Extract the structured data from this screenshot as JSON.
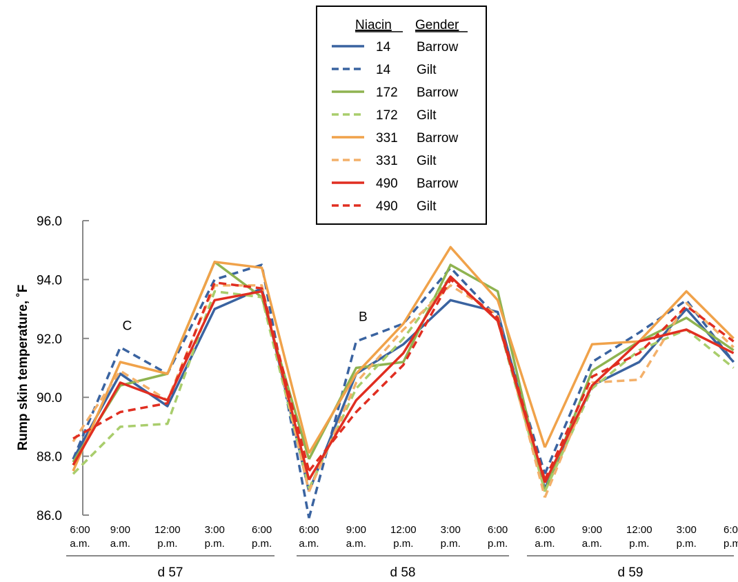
{
  "chart_data": {
    "type": "line",
    "ylabel": "Rump skin temperature, ˚F",
    "ylim": [
      86.0,
      96.0
    ],
    "yticks": [
      "96.0",
      "94.0",
      "92.0",
      "90.0",
      "88.0",
      "86.0"
    ],
    "x_ticks": [
      {
        "time": "6:00",
        "period": "a.m."
      },
      {
        "time": "9:00",
        "period": "a.m."
      },
      {
        "time": "12:00",
        "period": "p.m."
      },
      {
        "time": "3:00",
        "period": "p.m."
      },
      {
        "time": "6:00",
        "period": "p.m."
      },
      {
        "time": "6:00",
        "period": "a.m."
      },
      {
        "time": "9:00",
        "period": "a.m."
      },
      {
        "time": "12:00",
        "period": "p.m."
      },
      {
        "time": "3:00",
        "period": "p.m."
      },
      {
        "time": "6:00",
        "period": "p.m."
      },
      {
        "time": "6:00",
        "period": "a.m."
      },
      {
        "time": "9:00",
        "period": "a.m."
      },
      {
        "time": "12:00",
        "period": "p.m."
      },
      {
        "time": "3:00",
        "period": "p.m."
      },
      {
        "time": "6:00",
        "period": "p.m."
      }
    ],
    "days": [
      "d 57",
      "d 58",
      "d 59"
    ],
    "legend": {
      "header_niacin": "Niacin",
      "header_gender": "Gender",
      "placement": "top-center"
    },
    "annotations": [
      {
        "text": "C",
        "x_index": 1,
        "y": 92.1
      },
      {
        "text": "B",
        "x_index": 6,
        "y": 92.4
      }
    ],
    "series": [
      {
        "niacin": "14",
        "gender": "Barrow",
        "color": "#3a63a0",
        "dash": false,
        "values": [
          87.9,
          90.8,
          89.7,
          93.0,
          93.7,
          86.8,
          90.8,
          91.8,
          93.3,
          92.9,
          86.9,
          90.4,
          91.2,
          93.0,
          91.2
        ]
      },
      {
        "niacin": "14",
        "gender": "Gilt",
        "color": "#3a63a0",
        "dash": true,
        "values": [
          87.9,
          91.7,
          90.8,
          94.0,
          94.5,
          85.9,
          91.9,
          92.5,
          94.4,
          92.7,
          87.4,
          91.2,
          92.2,
          93.3,
          91.2
        ]
      },
      {
        "niacin": "172",
        "gender": "Barrow",
        "color": "#8fb350",
        "dash": false,
        "values": [
          87.8,
          90.4,
          90.8,
          94.6,
          93.4,
          87.9,
          91.0,
          91.2,
          94.5,
          93.6,
          86.8,
          90.9,
          91.9,
          92.7,
          91.6
        ]
      },
      {
        "niacin": "172",
        "gender": "Gilt",
        "color": "#a9cd6c",
        "dash": true,
        "values": [
          87.4,
          89.0,
          89.1,
          93.6,
          93.4,
          86.9,
          90.3,
          92.0,
          94.1,
          92.6,
          86.8,
          90.3,
          91.6,
          92.3,
          91.0
        ]
      },
      {
        "niacin": "331",
        "gender": "Barrow",
        "color": "#f0a24a",
        "dash": false,
        "values": [
          87.5,
          91.2,
          90.8,
          94.6,
          94.4,
          88.1,
          90.8,
          92.5,
          95.1,
          93.3,
          88.3,
          91.8,
          91.9,
          93.6,
          92.0
        ]
      },
      {
        "niacin": "331",
        "gender": "Gilt",
        "color": "#f3b06a",
        "dash": true,
        "values": [
          88.5,
          90.9,
          89.9,
          93.8,
          93.8,
          86.8,
          90.5,
          92.3,
          93.8,
          92.8,
          86.6,
          90.5,
          90.6,
          93.2,
          91.7
        ]
      },
      {
        "niacin": "490",
        "gender": "Barrow",
        "color": "#e02e21",
        "dash": false,
        "values": [
          87.7,
          90.5,
          89.9,
          93.3,
          93.6,
          87.2,
          89.9,
          91.5,
          94.1,
          92.6,
          87.1,
          90.4,
          91.9,
          92.3,
          91.5
        ]
      },
      {
        "niacin": "490",
        "gender": "Gilt",
        "color": "#e02e21",
        "dash": true,
        "values": [
          88.6,
          89.5,
          89.8,
          93.9,
          93.7,
          87.5,
          89.5,
          91.1,
          94.0,
          92.7,
          87.2,
          90.7,
          91.5,
          93.1,
          91.9
        ]
      }
    ]
  }
}
